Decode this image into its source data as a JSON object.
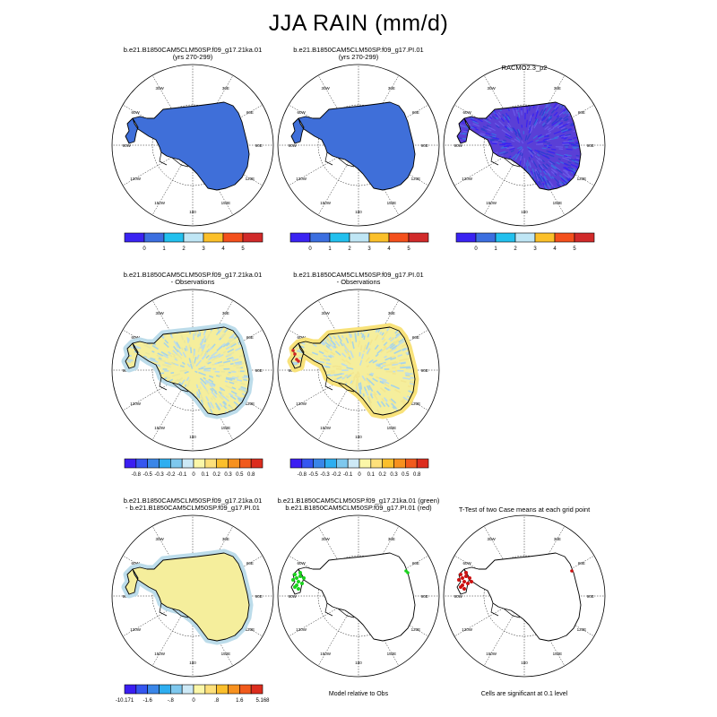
{
  "title": "JJA RAIN (mm/d)",
  "colors": {
    "abs": [
      "#3a23f2",
      "#3c6fe0",
      "#22c0ee",
      "#bfe6f5",
      "#fbc02a",
      "#f4501c",
      "#d12a2a"
    ],
    "diff": [
      "#3b1ef2",
      "#3556f0",
      "#3a86e8",
      "#2eaef0",
      "#7ec8ee",
      "#cde9f6",
      "#fbf7a8",
      "#fde07a",
      "#fbbf2c",
      "#f7911f",
      "#f15a1c",
      "#dc2d1e",
      "#b81818"
    ],
    "model_fill": "#3f6fd9",
    "racmo_fill": "#5a3fd6",
    "obs_light": "#bcdcea",
    "obs_yellow": "#f5ee9c",
    "obs_red": "#d42323",
    "case_green": "#19d21d",
    "ttest_red": "#cc1111"
  },
  "polar_labels": {
    "lon": [
      "30W",
      "30E",
      "60W",
      "60E",
      "90W",
      "90E",
      "120W",
      "120E",
      "150W",
      "150E",
      "180",
      "0"
    ]
  },
  "panels": [
    {
      "id": "r1c1",
      "title": [
        "b.e21.B1850CAM5CLM50SP.f09_g17.21ka.01",
        "(yrs 270-299)"
      ],
      "type": "model"
    },
    {
      "id": "r1c2",
      "title": [
        "b.e21.B1850CAM5CLM50SP.f09_g17.PI.01",
        "(yrs 270-299)"
      ],
      "type": "model"
    },
    {
      "id": "r1c3",
      "title": [
        "RACMO2.3_p2",
        ""
      ],
      "type": "racmo"
    },
    {
      "id": "r2c1",
      "title": [
        "b.e21.B1850CAM5CLM50SP.f09_g17.21ka.01",
        "- Observations"
      ],
      "type": "obsdiff1"
    },
    {
      "id": "r2c2",
      "title": [
        "b.e21.B1850CAM5CLM50SP.f09_g17.PI.01",
        "- Observations"
      ],
      "type": "obsdiff2"
    },
    {
      "id": "r3c1",
      "title": [
        "b.e21.B1850CAM5CLM50SP.f09_g17.21ka.01",
        "- b.e21.B1850CAM5CLM50SP.f09_g17.PI.01"
      ],
      "type": "casediff"
    },
    {
      "id": "r3c2",
      "title": [
        "b.e21.B1850CAM5CLM50SP.f09_g17.21ka.01 (green)",
        "b.e21.B1850CAM5CLM50SP.f09_g17.PI.01 (red)"
      ],
      "type": "relative"
    },
    {
      "id": "r3c3",
      "title": [
        "T-Test of two Case means at each grid point",
        ""
      ],
      "type": "ttest"
    }
  ],
  "colorbars": {
    "abs_labels": [
      "0",
      "1",
      "2",
      "3",
      "4",
      "5"
    ],
    "obs_labels": [
      "-0.8",
      "-0.5",
      "-0.3",
      "-0.2",
      "-0.1",
      "0",
      "0.1",
      "0.2",
      "0.3",
      "0.5",
      "0.8"
    ],
    "case_labels": [
      "-10.171",
      "-1.6",
      "-.8",
      "0",
      ".8",
      "1.6",
      "5.168"
    ]
  },
  "notes": {
    "relative": "Model relative to Obs",
    "ttest": "Cells are significant at 0.1 level"
  }
}
